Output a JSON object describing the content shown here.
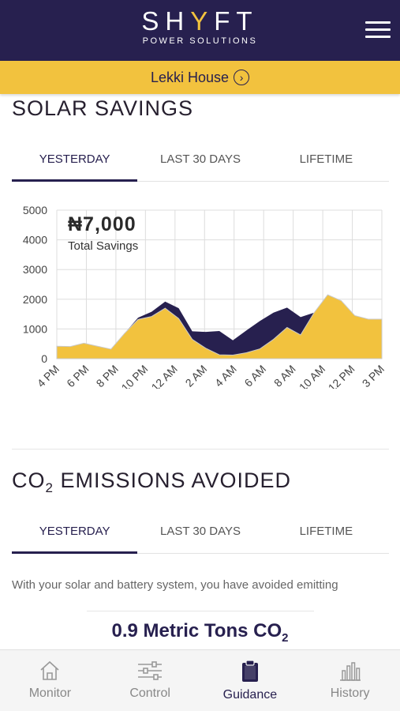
{
  "header": {
    "logo_left": "SH",
    "logo_accent": "Y",
    "logo_right": "FT",
    "logo_sub": "POWER SOLUTIONS",
    "menu_icon": "hamburger-menu-icon"
  },
  "site": {
    "name": "Lekki House",
    "icon": "chevron-right-circle-icon"
  },
  "solar": {
    "title": "SOLAR SAVINGS",
    "tabs": [
      {
        "label": "YESTERDAY",
        "active": true
      },
      {
        "label": "LAST 30 DAYS",
        "active": false
      },
      {
        "label": "LIFETIME",
        "active": false
      }
    ],
    "total_value": "₦7,000",
    "total_label": "Total Savings"
  },
  "chart_data": {
    "type": "area",
    "xlabel": "",
    "ylabel": "",
    "ylim": [
      0,
      5000
    ],
    "yticks": [
      "5000",
      "4000",
      "3000",
      "2000",
      "1000",
      "0"
    ],
    "xticks": [
      "4 PM",
      "6 PM",
      "8 PM",
      "10 PM",
      "12 AM",
      "2 AM",
      "4 AM",
      "6 AM",
      "8 AM",
      "10 AM",
      "12 PM",
      "3 PM"
    ],
    "grid": true,
    "x": [
      0,
      1,
      2,
      3,
      4,
      5,
      6,
      7,
      8,
      9,
      10,
      11,
      12,
      13,
      14,
      15,
      16,
      17,
      18,
      19,
      20,
      21,
      22,
      23,
      24
    ],
    "series": [
      {
        "color": "#27204f",
        "values": [
          420,
          410,
          520,
          420,
          320,
          850,
          1380,
          1580,
          1920,
          1700,
          920,
          900,
          930,
          620,
          950,
          1270,
          1550,
          1720,
          1400,
          1550,
          2100,
          1900,
          1450,
          1300,
          1300
        ]
      },
      {
        "color": "#f2c23e",
        "values": [
          420,
          410,
          520,
          420,
          320,
          850,
          1320,
          1420,
          1700,
          1350,
          650,
          350,
          130,
          120,
          200,
          330,
          650,
          1050,
          800,
          1550,
          2150,
          1950,
          1450,
          1330,
          1330
        ]
      }
    ]
  },
  "co2": {
    "title_main": "CO",
    "title_sub": "2",
    "title_rest": " EMISSIONS AVOIDED",
    "tabs": [
      {
        "label": "YESTERDAY",
        "active": true
      },
      {
        "label": "LAST 30 DAYS",
        "active": false
      },
      {
        "label": "LIFETIME",
        "active": false
      }
    ],
    "description": "With your solar and battery system, you have avoided emitting",
    "amount_main": "0.9 Metric Tons CO",
    "amount_sub": "2"
  },
  "nav": {
    "items": [
      {
        "label": "Monitor",
        "icon": "home-icon",
        "active": false
      },
      {
        "label": "Control",
        "icon": "sliders-icon",
        "active": false
      },
      {
        "label": "Guidance",
        "icon": "clipboard-icon",
        "active": true
      },
      {
        "label": "History",
        "icon": "bar-chart-icon",
        "active": false
      }
    ]
  }
}
